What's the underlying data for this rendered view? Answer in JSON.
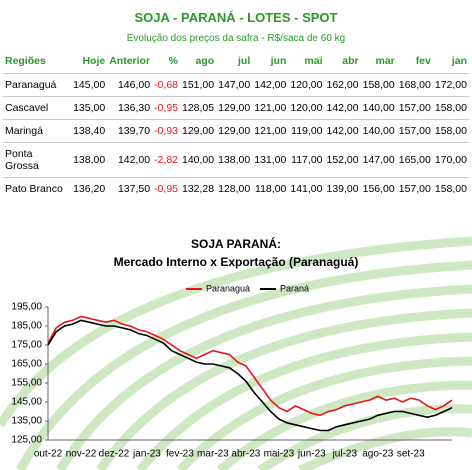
{
  "header": {
    "title": "SOJA - PARANÁ - LOTES - SPOT",
    "subtitle": "Evolução dos preços da safra - R$/saca de 60 kg"
  },
  "table": {
    "columns": [
      "Regiões",
      "Hoje",
      "Anterior",
      "%",
      "ago",
      "jul",
      "jun",
      "mai",
      "abr",
      "mar",
      "fev",
      "jan"
    ],
    "rows": [
      [
        "Paranaguá",
        "145,00",
        "146,00",
        "-0,68",
        "151,00",
        "147,00",
        "142,00",
        "120,00",
        "162,00",
        "158,00",
        "168,00",
        "172,00"
      ],
      [
        "Cascavel",
        "135,00",
        "136,30",
        "-0,95",
        "128,05",
        "129,00",
        "121,00",
        "120,00",
        "142,00",
        "140,00",
        "157,00",
        "158,00"
      ],
      [
        "Maringá",
        "138,40",
        "139,70",
        "-0,93",
        "129,00",
        "129,00",
        "121,00",
        "119,00",
        "142,00",
        "140,00",
        "157,00",
        "158,00"
      ],
      [
        "Ponta Grossa",
        "138,00",
        "142,00",
        "-2,82",
        "140,00",
        "138,00",
        "131,00",
        "117,00",
        "152,00",
        "147,00",
        "165,00",
        "170,00"
      ],
      [
        "Pato Branco",
        "136,20",
        "137,50",
        "-0,95",
        "132,28",
        "128,00",
        "118,00",
        "141,00",
        "139,00",
        "156,00",
        "157,00",
        "158,00"
      ]
    ]
  },
  "chart_data": {
    "type": "line",
    "title": "SOJA PARANÁ:",
    "subtitle": "Mercado Interno x Exportação (Paranaguá)",
    "categories": [
      "out-22",
      null,
      null,
      null,
      "nov-22",
      null,
      null,
      null,
      "dez-22",
      null,
      null,
      null,
      "jan-23",
      null,
      null,
      null,
      "fev-23",
      null,
      null,
      null,
      "mar-23",
      null,
      null,
      null,
      "abr-23",
      null,
      null,
      null,
      "mai-23",
      null,
      null,
      null,
      "jun-23",
      null,
      null,
      null,
      "jul-23",
      null,
      null,
      null,
      "ago-23",
      null,
      null,
      null,
      "set-23",
      null,
      null,
      null,
      null,
      null
    ],
    "series": [
      {
        "name": "Paranaguá",
        "color": "#e8141a",
        "values": [
          176,
          184,
          187,
          188,
          190,
          189,
          188,
          187,
          188,
          186,
          185,
          183,
          182,
          180,
          178,
          175,
          172,
          170,
          168,
          170,
          172,
          171,
          170,
          166,
          164,
          158,
          152,
          146,
          142,
          140,
          143,
          141,
          139,
          138,
          140,
          141,
          143,
          144,
          145,
          146,
          148,
          146,
          147,
          145,
          147,
          146,
          143,
          141,
          143,
          146
        ]
      },
      {
        "name": "Paraná",
        "color": "#000000",
        "values": [
          175,
          182,
          185,
          186,
          188,
          187,
          186,
          185,
          185,
          184,
          183,
          181,
          180,
          178,
          176,
          172,
          170,
          168,
          166,
          165,
          165,
          164,
          163,
          160,
          156,
          150,
          145,
          140,
          136,
          134,
          133,
          132,
          131,
          130,
          130,
          132,
          133,
          134,
          135,
          136,
          138,
          139,
          140,
          140,
          139,
          138,
          137,
          138,
          140,
          142
        ]
      }
    ],
    "ylim": [
      125,
      195
    ],
    "yticks": [
      {
        "value": 125,
        "label": "125,00"
      },
      {
        "value": 135,
        "label": "135,00"
      },
      {
        "value": 145,
        "label": "145,00"
      },
      {
        "value": 155,
        "label": "155,00"
      },
      {
        "value": 165,
        "label": "165,00"
      },
      {
        "value": 175,
        "label": "175,00"
      },
      {
        "value": 185,
        "label": "185,00"
      },
      {
        "value": 195,
        "label": "195,00"
      }
    ],
    "legend": "top"
  }
}
